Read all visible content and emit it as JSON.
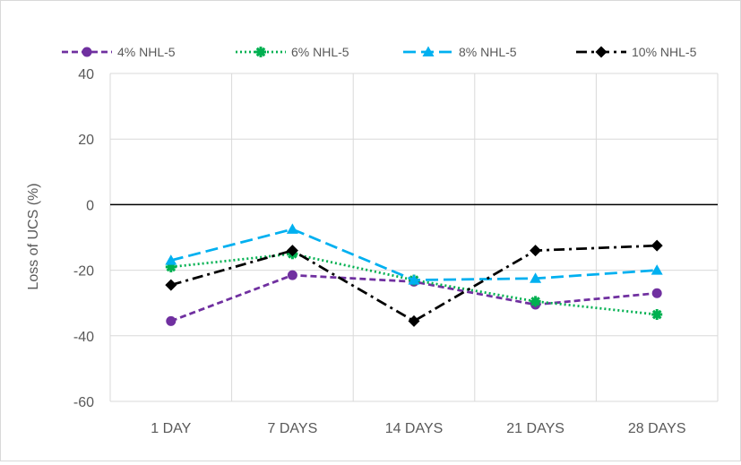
{
  "chart_data": {
    "type": "line",
    "title": "",
    "xlabel": "",
    "ylabel": "Loss of UCS (%)",
    "ylim": [
      -60,
      40
    ],
    "yticks": [
      40,
      20,
      0,
      -20,
      -40,
      -60
    ],
    "grid": true,
    "legend_position": "top",
    "categories": [
      "1 DAY",
      "7 DAYS",
      "14 DAYS",
      "21 DAYS",
      "28 DAYS"
    ],
    "series": [
      {
        "name": "4% NHL-5",
        "values": [
          -35.5,
          -21.5,
          -23.5,
          -30.5,
          -27
        ],
        "color": "#7030a0",
        "marker": "circle",
        "dash": "dash"
      },
      {
        "name": "6% NHL-5",
        "values": [
          -19,
          -15,
          -23,
          -29.5,
          -33.5
        ],
        "color": "#00b050",
        "marker": "star",
        "dash": "dot"
      },
      {
        "name": "8% NHL-5",
        "values": [
          -17,
          -7.5,
          -23,
          -22.5,
          -20
        ],
        "color": "#00b0f0",
        "marker": "triangle",
        "dash": "longdash"
      },
      {
        "name": "10% NHL-5",
        "values": [
          -24.5,
          -14,
          -35.5,
          -14,
          -12.5
        ],
        "color": "#000000",
        "marker": "diamond",
        "dash": "dashdot"
      }
    ]
  }
}
